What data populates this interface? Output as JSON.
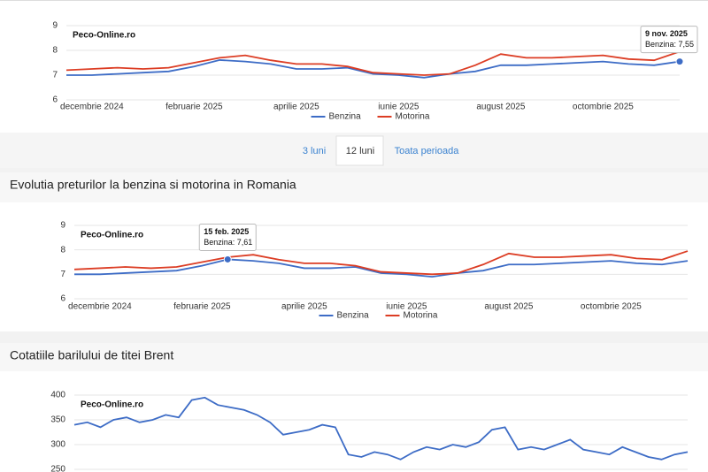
{
  "tabs": [
    "3 luni",
    "12 luni",
    "Toata perioada"
  ],
  "chart_data": [
    {
      "type": "line",
      "watermark": "Peco-Online.ro",
      "categories": [
        null,
        "decembrie 2024",
        null,
        null,
        null,
        "februarie 2025",
        null,
        null,
        null,
        "aprilie 2025",
        null,
        null,
        null,
        "iunie 2025",
        null,
        null,
        null,
        "august 2025",
        null,
        null,
        null,
        "octombrie 2025",
        null,
        null,
        null
      ],
      "series": [
        {
          "name": "Benzina",
          "color": "#3d6cc6",
          "values": [
            7.0,
            7.0,
            7.05,
            7.1,
            7.15,
            7.35,
            7.61,
            7.55,
            7.45,
            7.25,
            7.25,
            7.3,
            7.05,
            7.0,
            6.9,
            7.05,
            7.15,
            7.4,
            7.4,
            7.45,
            7.5,
            7.55,
            7.45,
            7.4,
            7.55
          ]
        },
        {
          "name": "Motorina",
          "color": "#dc3d24",
          "values": [
            7.2,
            7.25,
            7.3,
            7.25,
            7.3,
            7.5,
            7.7,
            7.8,
            7.6,
            7.45,
            7.45,
            7.35,
            7.1,
            7.05,
            7.0,
            7.05,
            7.4,
            7.85,
            7.7,
            7.7,
            7.75,
            7.8,
            7.65,
            7.6,
            7.95
          ]
        }
      ],
      "ylim": [
        6,
        9
      ],
      "yticks": [
        6,
        7,
        8,
        9
      ],
      "grid": true,
      "tooltip": {
        "series": 0,
        "index": 24,
        "title": "9 nov. 2025",
        "label": "Benzina: 7,55"
      }
    },
    {
      "type": "line",
      "title": "Evolutia preturilor la benzina si motorina in Romania",
      "watermark": "Peco-Online.ro",
      "categories": [
        null,
        "decembrie 2024",
        null,
        null,
        null,
        "februarie 2025",
        null,
        null,
        null,
        "aprilie 2025",
        null,
        null,
        null,
        "iunie 2025",
        null,
        null,
        null,
        "august 2025",
        null,
        null,
        null,
        "octombrie 2025",
        null,
        null,
        null
      ],
      "series": [
        {
          "name": "Benzina",
          "color": "#3d6cc6",
          "values": [
            7.0,
            7.0,
            7.05,
            7.1,
            7.15,
            7.35,
            7.61,
            7.55,
            7.45,
            7.25,
            7.25,
            7.3,
            7.05,
            7.0,
            6.9,
            7.05,
            7.15,
            7.4,
            7.4,
            7.45,
            7.5,
            7.55,
            7.45,
            7.4,
            7.55
          ]
        },
        {
          "name": "Motorina",
          "color": "#dc3d24",
          "values": [
            7.2,
            7.25,
            7.3,
            7.25,
            7.3,
            7.5,
            7.7,
            7.8,
            7.6,
            7.45,
            7.45,
            7.35,
            7.1,
            7.05,
            7.0,
            7.05,
            7.4,
            7.85,
            7.7,
            7.7,
            7.75,
            7.8,
            7.65,
            7.6,
            7.95
          ]
        }
      ],
      "ylim": [
        6,
        9
      ],
      "yticks": [
        6,
        7,
        8,
        9
      ],
      "grid": true,
      "tooltip": {
        "series": 0,
        "index": 6,
        "title": "15 feb. 2025",
        "label": "Benzina: 7,61"
      }
    },
    {
      "type": "line",
      "title": "Cotatiile barilului de titei Brent",
      "watermark": "Peco-Online.ro",
      "series": [
        {
          "color": "#3d6cc6",
          "values": [
            340,
            345,
            335,
            350,
            355,
            345,
            350,
            360,
            355,
            390,
            395,
            380,
            375,
            370,
            360,
            345,
            320,
            325,
            330,
            340,
            335,
            280,
            275,
            285,
            280,
            270,
            285,
            295,
            290,
            300,
            295,
            305,
            330,
            335,
            290,
            295,
            290,
            300,
            310,
            290,
            285,
            280,
            295,
            285,
            275,
            270,
            280,
            285
          ]
        }
      ],
      "ylim": [
        250,
        400
      ],
      "yticks": [
        250,
        300,
        350,
        400
      ],
      "grid": true
    }
  ]
}
